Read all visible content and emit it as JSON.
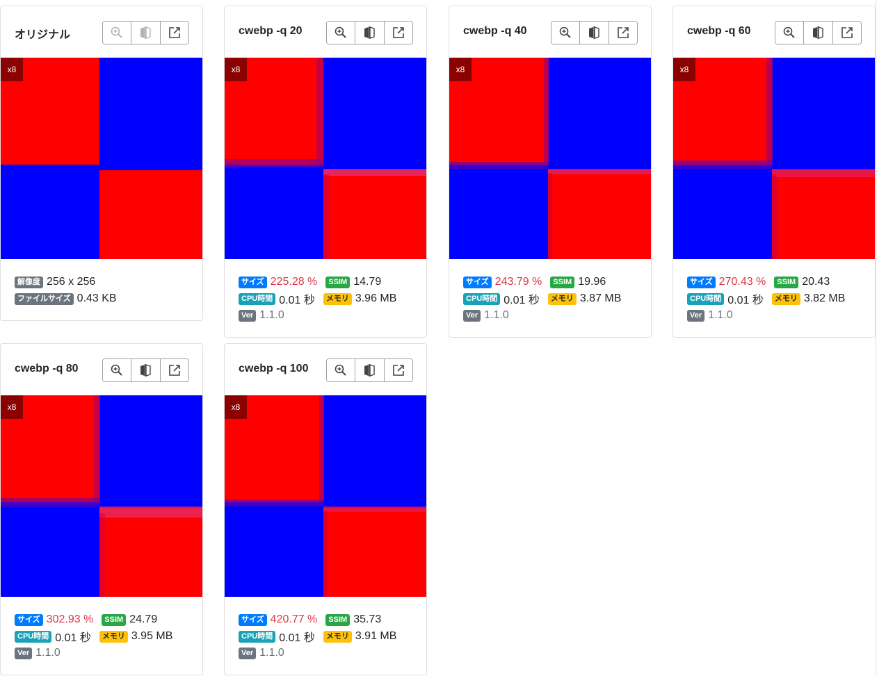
{
  "icons": {
    "zoom": "zoom-in-icon",
    "compare": "compare-split-icon",
    "open": "external-link-icon"
  },
  "colors": {
    "red": "#ff0000",
    "blue": "#0000ff",
    "badge_bg": "#8b0000"
  },
  "labels": {
    "resolution": "解像度",
    "filesize": "ファイルサイズ",
    "size": "サイズ",
    "ssim": "SSIM",
    "cpu": "CPU時間",
    "memory": "メモリ",
    "ver": "Ver"
  },
  "cards": [
    {
      "title": "オリジナル",
      "zoom": "x8",
      "resolution": "256 x 256",
      "filesize": "0.43 KB"
    },
    {
      "title": "cwebp -q 20",
      "zoom": "x8",
      "size": "225.28 %",
      "ssim": "14.79",
      "cpu": "0.01 秒",
      "memory": "3.96 MB",
      "ver": "1.1.0"
    },
    {
      "title": "cwebp -q 40",
      "zoom": "x8",
      "size": "243.79 %",
      "ssim": "19.96",
      "cpu": "0.01 秒",
      "memory": "3.87 MB",
      "ver": "1.1.0"
    },
    {
      "title": "cwebp -q 60",
      "zoom": "x8",
      "size": "270.43 %",
      "ssim": "20.43",
      "cpu": "0.01 秒",
      "memory": "3.82 MB",
      "ver": "1.1.0"
    },
    {
      "title": "cwebp -q 80",
      "zoom": "x8",
      "size": "302.93 %",
      "ssim": "24.79",
      "cpu": "0.01 秒",
      "memory": "3.95 MB",
      "ver": "1.1.0"
    },
    {
      "title": "cwebp -q 100",
      "zoom": "x8",
      "size": "420.77 %",
      "ssim": "35.73",
      "cpu": "0.01 秒",
      "memory": "3.91 MB",
      "ver": "1.1.0"
    }
  ]
}
